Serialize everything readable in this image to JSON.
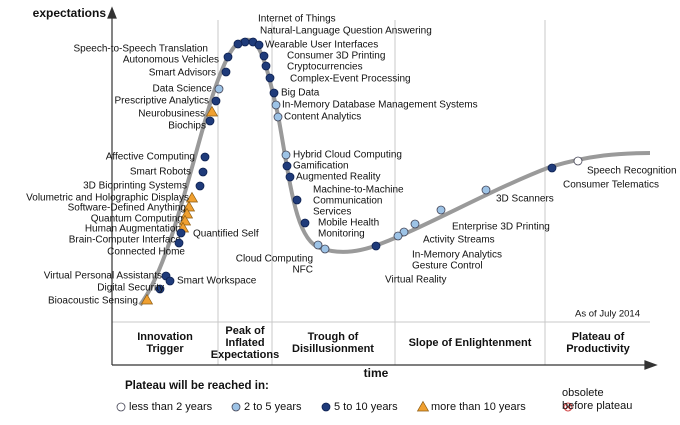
{
  "axes": {
    "y_label": "expectations",
    "x_label": "time"
  },
  "note": "As of July 2014",
  "phases": [
    [
      "Innovation",
      "Trigger"
    ],
    [
      "Peak of",
      "Inflated",
      "Expectations"
    ],
    [
      "Trough of",
      "Disillusionment"
    ],
    [
      "Slope of Enlightenment"
    ],
    [
      "Plateau of",
      "Productivity"
    ]
  ],
  "legend": {
    "title": "Plateau will be reached in:",
    "items": [
      {
        "label": "less than 2 years",
        "marker": "white-circle"
      },
      {
        "label": "2 to 5 years",
        "marker": "light-circle"
      },
      {
        "label": "5 to 10 years",
        "marker": "dark-circle"
      },
      {
        "label": "more than 10 years",
        "marker": "triangle"
      },
      {
        "label": [
          "obsolete",
          "before plateau"
        ],
        "marker": "cross"
      }
    ]
  },
  "technologies": [
    {
      "label": "Internet of Things",
      "marker": "dark-circle"
    },
    {
      "label": "Natural-Language Question Answering",
      "marker": "dark-circle"
    },
    {
      "label": "Wearable User Interfaces",
      "marker": "dark-circle"
    },
    {
      "label": "Consumer 3D Printing",
      "marker": "dark-circle"
    },
    {
      "label": "Cryptocurrencies",
      "marker": "dark-circle"
    },
    {
      "label": "Complex-Event Processing",
      "marker": "dark-circle"
    },
    {
      "label": "Big Data",
      "marker": "dark-circle"
    },
    {
      "label": "In-Memory Database Management Systems",
      "marker": "light-circle"
    },
    {
      "label": "Content Analytics",
      "marker": "light-circle"
    },
    {
      "label": "Speech-to-Speech Translation",
      "marker": "dark-circle"
    },
    {
      "label": "Autonomous Vehicles",
      "marker": "dark-circle"
    },
    {
      "label": "Smart Advisors",
      "marker": "dark-circle"
    },
    {
      "label": "Data Science",
      "marker": "light-circle"
    },
    {
      "label": "Prescriptive Analytics",
      "marker": "dark-circle"
    },
    {
      "label": "Neurobusiness",
      "marker": "triangle"
    },
    {
      "label": "Biochips",
      "marker": "dark-circle"
    },
    {
      "label": "Affective  Computing",
      "marker": "dark-circle"
    },
    {
      "label": "Smart Robots",
      "marker": "dark-circle"
    },
    {
      "label": "3D Bioprinting Systems",
      "marker": "dark-circle"
    },
    {
      "label": "Volumetric and Holographic Displays",
      "marker": "triangle"
    },
    {
      "label": "Software-Defined Anything",
      "marker": "triangle"
    },
    {
      "label": "Quantum Computing",
      "marker": "triangle"
    },
    {
      "label": "Human Augmentation",
      "marker": "triangle"
    },
    {
      "label": "Brain-Computer Interface",
      "marker": "triangle"
    },
    {
      "label": "Quantified Self",
      "marker": "dark-circle"
    },
    {
      "label": "Connected Home",
      "marker": "dark-circle"
    },
    {
      "label": "Virtual Personal Assistants",
      "marker": "dark-circle"
    },
    {
      "label": "Smart Workspace",
      "marker": "dark-circle"
    },
    {
      "label": "Digital Security",
      "marker": "dark-circle"
    },
    {
      "label": "Bioacoustic Sensing",
      "marker": "triangle"
    },
    {
      "label": "Hybrid Cloud Computing",
      "marker": "light-circle"
    },
    {
      "label": "Gamification",
      "marker": "dark-circle"
    },
    {
      "label": "Augmented Reality",
      "marker": "dark-circle"
    },
    {
      "label": [
        "Machine-to-Machine",
        "Communication",
        "Services"
      ],
      "marker": "dark-circle"
    },
    {
      "label": [
        "Mobile Health",
        "Monitoring"
      ],
      "marker": "dark-circle"
    },
    {
      "label": "Cloud Computing",
      "marker": "light-circle"
    },
    {
      "label": "NFC",
      "marker": "light-circle"
    },
    {
      "label": "Virtual Reality",
      "marker": "dark-circle"
    },
    {
      "label": "In-Memory Analytics",
      "marker": "light-circle"
    },
    {
      "label": "Gesture Control",
      "marker": "light-circle"
    },
    {
      "label": "Activity  Streams",
      "marker": "light-circle"
    },
    {
      "label": "Enterprise 3D Printing",
      "marker": "light-circle"
    },
    {
      "label": "3D Scanners",
      "marker": "light-circle"
    },
    {
      "label": "Consumer Telematics",
      "marker": "dark-circle"
    },
    {
      "label": "Speech Recognition",
      "marker": "white-circle"
    }
  ]
}
